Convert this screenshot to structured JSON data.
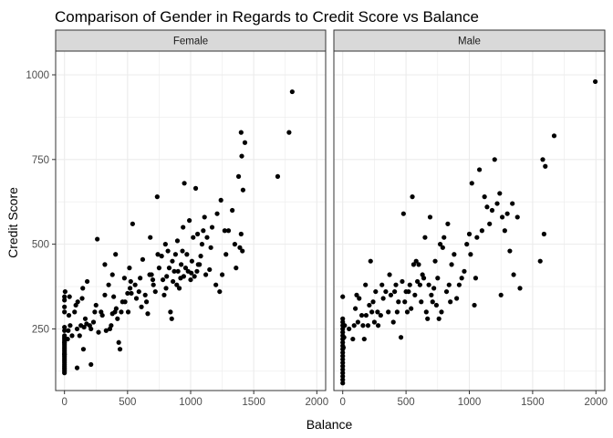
{
  "chart_data": {
    "type": "scatter",
    "title": "Comparison of Gender in Regards to Credit Score vs Balance",
    "xlabel": "Balance",
    "ylabel": "Credit Score",
    "xlim": [
      -70,
      2070
    ],
    "ylim": [
      68,
      1070
    ],
    "x_ticks": [
      0,
      500,
      1000,
      1500,
      2000
    ],
    "y_ticks": [
      250,
      500,
      750,
      1000
    ],
    "grid": true,
    "point_color": "#000000",
    "panel_border_color": "#333333",
    "strip_fill": "#d9d9d9",
    "grid_color": "#ebebeb",
    "panels": [
      {
        "facet": "Female",
        "points": [
          [
            0,
            120
          ],
          [
            0,
            125
          ],
          [
            0,
            130
          ],
          [
            0,
            135
          ],
          [
            0,
            140
          ],
          [
            0,
            145
          ],
          [
            0,
            150
          ],
          [
            0,
            155
          ],
          [
            0,
            160
          ],
          [
            0,
            165
          ],
          [
            0,
            170
          ],
          [
            0,
            175
          ],
          [
            0,
            180
          ],
          [
            0,
            185
          ],
          [
            0,
            190
          ],
          [
            0,
            195
          ],
          [
            0,
            200
          ],
          [
            0,
            205
          ],
          [
            0,
            210
          ],
          [
            0,
            215
          ],
          [
            0,
            220
          ],
          [
            0,
            225
          ],
          [
            0,
            230
          ],
          [
            0,
            245
          ],
          [
            0,
            255
          ],
          [
            0,
            300
          ],
          [
            0,
            315
          ],
          [
            0,
            335
          ],
          [
            0,
            345
          ],
          [
            5,
            360
          ],
          [
            0,
            210
          ],
          [
            0,
            175
          ],
          [
            25,
            220
          ],
          [
            30,
            245
          ],
          [
            35,
            290
          ],
          [
            40,
            345
          ],
          [
            45,
            260
          ],
          [
            60,
            230
          ],
          [
            80,
            300
          ],
          [
            90,
            320
          ],
          [
            100,
            250
          ],
          [
            100,
            135
          ],
          [
            105,
            330
          ],
          [
            120,
            230
          ],
          [
            130,
            260
          ],
          [
            140,
            340
          ],
          [
            145,
            370
          ],
          [
            150,
            190
          ],
          [
            155,
            255
          ],
          [
            165,
            280
          ],
          [
            175,
            265
          ],
          [
            180,
            390
          ],
          [
            200,
            260
          ],
          [
            210,
            145
          ],
          [
            210,
            250
          ],
          [
            230,
            270
          ],
          [
            240,
            300
          ],
          [
            250,
            320
          ],
          [
            260,
            515
          ],
          [
            270,
            240
          ],
          [
            290,
            300
          ],
          [
            300,
            290
          ],
          [
            320,
            350
          ],
          [
            320,
            440
          ],
          [
            330,
            245
          ],
          [
            350,
            380
          ],
          [
            360,
            250
          ],
          [
            370,
            260
          ],
          [
            380,
            295
          ],
          [
            380,
            410
          ],
          [
            390,
            345
          ],
          [
            400,
            300
          ],
          [
            405,
            470
          ],
          [
            410,
            310
          ],
          [
            420,
            280
          ],
          [
            430,
            210
          ],
          [
            440,
            190
          ],
          [
            450,
            300
          ],
          [
            460,
            330
          ],
          [
            475,
            400
          ],
          [
            480,
            330
          ],
          [
            500,
            355
          ],
          [
            505,
            300
          ],
          [
            515,
            430
          ],
          [
            520,
            370
          ],
          [
            525,
            390
          ],
          [
            530,
            355
          ],
          [
            540,
            560
          ],
          [
            560,
            380
          ],
          [
            570,
            340
          ],
          [
            590,
            360
          ],
          [
            600,
            400
          ],
          [
            610,
            315
          ],
          [
            620,
            455
          ],
          [
            640,
            350
          ],
          [
            650,
            330
          ],
          [
            660,
            295
          ],
          [
            675,
            410
          ],
          [
            680,
            520
          ],
          [
            690,
            410
          ],
          [
            700,
            395
          ],
          [
            705,
            380
          ],
          [
            720,
            360
          ],
          [
            735,
            640
          ],
          [
            740,
            470
          ],
          [
            750,
            430
          ],
          [
            770,
            465
          ],
          [
            780,
            395
          ],
          [
            790,
            350
          ],
          [
            800,
            500
          ],
          [
            805,
            370
          ],
          [
            810,
            405
          ],
          [
            820,
            480
          ],
          [
            830,
            430
          ],
          [
            840,
            300
          ],
          [
            850,
            280
          ],
          [
            855,
            450
          ],
          [
            860,
            390
          ],
          [
            870,
            420
          ],
          [
            880,
            470
          ],
          [
            890,
            380
          ],
          [
            895,
            510
          ],
          [
            900,
            420
          ],
          [
            910,
            370
          ],
          [
            920,
            400
          ],
          [
            925,
            440
          ],
          [
            935,
            480
          ],
          [
            940,
            550
          ],
          [
            945,
            405
          ],
          [
            950,
            680
          ],
          [
            960,
            430
          ],
          [
            970,
            470
          ],
          [
            980,
            420
          ],
          [
            990,
            570
          ],
          [
            1000,
            395
          ],
          [
            1005,
            415
          ],
          [
            1010,
            450
          ],
          [
            1020,
            520
          ],
          [
            1030,
            405
          ],
          [
            1040,
            665
          ],
          [
            1050,
            420
          ],
          [
            1055,
            530
          ],
          [
            1060,
            440
          ],
          [
            1070,
            440
          ],
          [
            1080,
            465
          ],
          [
            1090,
            500
          ],
          [
            1100,
            540
          ],
          [
            1110,
            580
          ],
          [
            1120,
            410
          ],
          [
            1130,
            520
          ],
          [
            1150,
            425
          ],
          [
            1160,
            490
          ],
          [
            1170,
            550
          ],
          [
            1200,
            380
          ],
          [
            1210,
            590
          ],
          [
            1230,
            360
          ],
          [
            1240,
            630
          ],
          [
            1250,
            410
          ],
          [
            1270,
            540
          ],
          [
            1280,
            470
          ],
          [
            1300,
            540
          ],
          [
            1330,
            600
          ],
          [
            1350,
            500
          ],
          [
            1360,
            430
          ],
          [
            1380,
            700
          ],
          [
            1390,
            490
          ],
          [
            1400,
            530
          ],
          [
            1400,
            830
          ],
          [
            1405,
            760
          ],
          [
            1410,
            480
          ],
          [
            1415,
            660
          ],
          [
            1430,
            800
          ],
          [
            1690,
            700
          ],
          [
            1780,
            830
          ],
          [
            1805,
            950
          ]
        ]
      },
      {
        "facet": "Male",
        "points": [
          [
            0,
            90
          ],
          [
            0,
            100
          ],
          [
            0,
            110
          ],
          [
            0,
            120
          ],
          [
            0,
            130
          ],
          [
            0,
            140
          ],
          [
            0,
            150
          ],
          [
            0,
            160
          ],
          [
            0,
            170
          ],
          [
            0,
            180
          ],
          [
            0,
            190
          ],
          [
            0,
            200
          ],
          [
            0,
            210
          ],
          [
            0,
            220
          ],
          [
            0,
            230
          ],
          [
            0,
            240
          ],
          [
            0,
            250
          ],
          [
            0,
            260
          ],
          [
            0,
            270
          ],
          [
            0,
            280
          ],
          [
            0,
            345
          ],
          [
            5,
            195
          ],
          [
            10,
            225
          ],
          [
            15,
            260
          ],
          [
            50,
            250
          ],
          [
            80,
            220
          ],
          [
            90,
            260
          ],
          [
            100,
            310
          ],
          [
            110,
            350
          ],
          [
            120,
            270
          ],
          [
            130,
            340
          ],
          [
            150,
            290
          ],
          [
            160,
            260
          ],
          [
            170,
            220
          ],
          [
            180,
            380
          ],
          [
            185,
            290
          ],
          [
            200,
            260
          ],
          [
            210,
            320
          ],
          [
            220,
            450
          ],
          [
            230,
            300
          ],
          [
            240,
            330
          ],
          [
            250,
            270
          ],
          [
            260,
            360
          ],
          [
            275,
            300
          ],
          [
            280,
            260
          ],
          [
            300,
            290
          ],
          [
            310,
            380
          ],
          [
            320,
            340
          ],
          [
            340,
            360
          ],
          [
            360,
            300
          ],
          [
            370,
            410
          ],
          [
            380,
            350
          ],
          [
            400,
            270
          ],
          [
            410,
            360
          ],
          [
            420,
            380
          ],
          [
            430,
            300
          ],
          [
            440,
            330
          ],
          [
            460,
            225
          ],
          [
            470,
            390
          ],
          [
            480,
            590
          ],
          [
            490,
            330
          ],
          [
            500,
            360
          ],
          [
            510,
            300
          ],
          [
            520,
            360
          ],
          [
            530,
            380
          ],
          [
            540,
            310
          ],
          [
            550,
            640
          ],
          [
            560,
            440
          ],
          [
            570,
            350
          ],
          [
            580,
            450
          ],
          [
            590,
            390
          ],
          [
            600,
            440
          ],
          [
            610,
            380
          ],
          [
            620,
            330
          ],
          [
            630,
            410
          ],
          [
            640,
            400
          ],
          [
            650,
            520
          ],
          [
            660,
            300
          ],
          [
            670,
            280
          ],
          [
            680,
            380
          ],
          [
            690,
            580
          ],
          [
            700,
            350
          ],
          [
            710,
            330
          ],
          [
            720,
            370
          ],
          [
            730,
            450
          ],
          [
            740,
            320
          ],
          [
            750,
            400
          ],
          [
            760,
            280
          ],
          [
            770,
            500
          ],
          [
            780,
            300
          ],
          [
            790,
            490
          ],
          [
            800,
            520
          ],
          [
            820,
            360
          ],
          [
            830,
            560
          ],
          [
            840,
            380
          ],
          [
            850,
            330
          ],
          [
            860,
            440
          ],
          [
            880,
            470
          ],
          [
            900,
            340
          ],
          [
            920,
            380
          ],
          [
            940,
            400
          ],
          [
            960,
            420
          ],
          [
            980,
            500
          ],
          [
            1000,
            530
          ],
          [
            1010,
            470
          ],
          [
            1020,
            680
          ],
          [
            1040,
            320
          ],
          [
            1050,
            400
          ],
          [
            1060,
            520
          ],
          [
            1080,
            720
          ],
          [
            1100,
            540
          ],
          [
            1120,
            640
          ],
          [
            1140,
            610
          ],
          [
            1160,
            560
          ],
          [
            1180,
            600
          ],
          [
            1200,
            750
          ],
          [
            1220,
            620
          ],
          [
            1240,
            650
          ],
          [
            1250,
            350
          ],
          [
            1260,
            580
          ],
          [
            1280,
            540
          ],
          [
            1300,
            590
          ],
          [
            1320,
            480
          ],
          [
            1340,
            620
          ],
          [
            1350,
            410
          ],
          [
            1380,
            580
          ],
          [
            1400,
            370
          ],
          [
            1560,
            450
          ],
          [
            1580,
            750
          ],
          [
            1590,
            530
          ],
          [
            1600,
            730
          ],
          [
            1670,
            820
          ],
          [
            1995,
            980
          ]
        ]
      }
    ]
  }
}
